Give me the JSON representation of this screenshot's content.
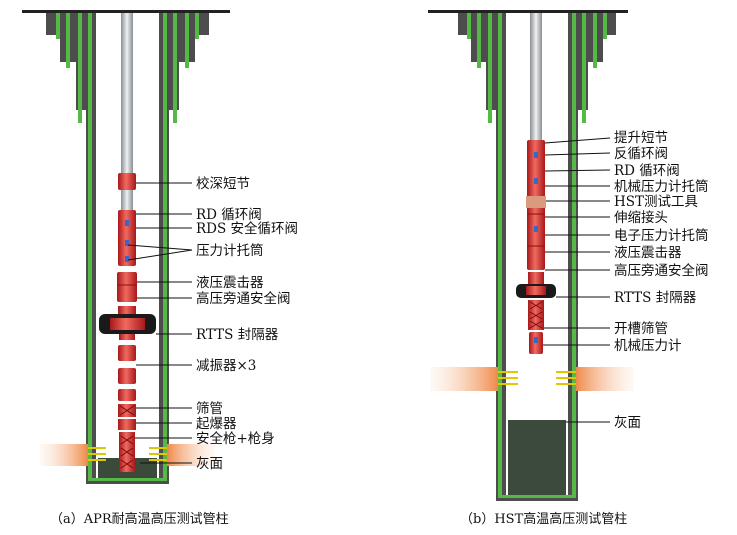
{
  "diagram_a": {
    "caption": "（a）APR耐高温高压测试管柱",
    "labels": [
      "校深短节",
      "RD 循环阀",
      "RDS 安全循环阀",
      "压力计托筒",
      "液压震击器",
      "高压旁通安全阀",
      "RTTS 封隔器",
      "减振器×3",
      "筛管",
      "起爆器",
      "安全枪+枪身",
      "灰面"
    ]
  },
  "diagram_b": {
    "caption": "（b）HST高温高压测试管柱",
    "labels": [
      "提升短节",
      "反循环阀",
      "RD 循环阀",
      "机械压力计托筒",
      "HST测试工具",
      "伸缩接头",
      "电子压力计托筒",
      "液压震击器",
      "高压旁通安全阀",
      "RTTS 封隔器",
      "开槽筛管",
      "机械压力计",
      "灰面"
    ]
  },
  "colors": {
    "casing": "#4d4d4d",
    "cement": "#56b947",
    "tool": "#e2322b",
    "packer": "#1a1a1a",
    "perforation": "#f3a36c",
    "cement_plug": "#3c4a3c"
  }
}
